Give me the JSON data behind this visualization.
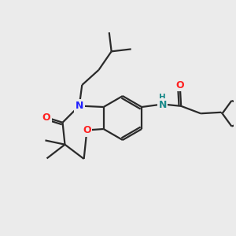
{
  "bg_color": "#ebebeb",
  "bond_color": "#2a2a2a",
  "bond_width": 1.6,
  "N_color": "#2020ff",
  "O_color": "#ff2020",
  "NH_H_color": "#2020ff",
  "NH_N_color": "#1a8a8a",
  "figsize": [
    3.0,
    3.0
  ],
  "dpi": 100,
  "xlim": [
    0,
    10
  ],
  "ylim": [
    0,
    10
  ]
}
